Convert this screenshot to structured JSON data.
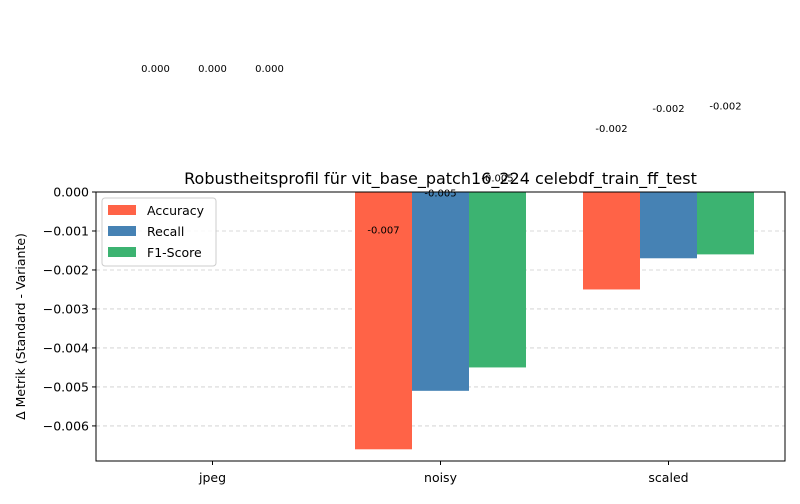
{
  "chart_data": {
    "type": "bar",
    "title": "Robustheitsprofil für vit_base_patch16_224 celebdf_train_ff_test",
    "xlabel": "",
    "ylabel": "Δ Metrik (Standard - Variante)",
    "categories": [
      "jpeg",
      "noisy",
      "scaled"
    ],
    "series": [
      {
        "name": "Accuracy",
        "color": "#ff6347",
        "values": [
          0.0,
          -0.0066,
          -0.0025
        ],
        "labels": [
          "0.000",
          "-0.007",
          "-0.002"
        ]
      },
      {
        "name": "Recall",
        "color": "#4682b4",
        "values": [
          0.0,
          -0.0051,
          -0.0017
        ],
        "labels": [
          "0.000",
          "-0.005",
          "-0.002"
        ]
      },
      {
        "name": "F1-Score",
        "color": "#3cb371",
        "values": [
          0.0,
          -0.0045,
          -0.0016
        ],
        "labels": [
          "0.000",
          "-0.005",
          "-0.002"
        ]
      }
    ],
    "ylim": [
      -0.0069,
      0.0
    ],
    "yticks": [
      0.0,
      -0.001,
      -0.002,
      -0.003,
      -0.004,
      -0.005,
      -0.006
    ],
    "ytick_labels": [
      "0.000",
      "−0.001",
      "−0.002",
      "−0.003",
      "−0.004",
      "−0.005",
      "−0.006"
    ],
    "grid": "y-dashed",
    "legend_position": "top-left"
  }
}
